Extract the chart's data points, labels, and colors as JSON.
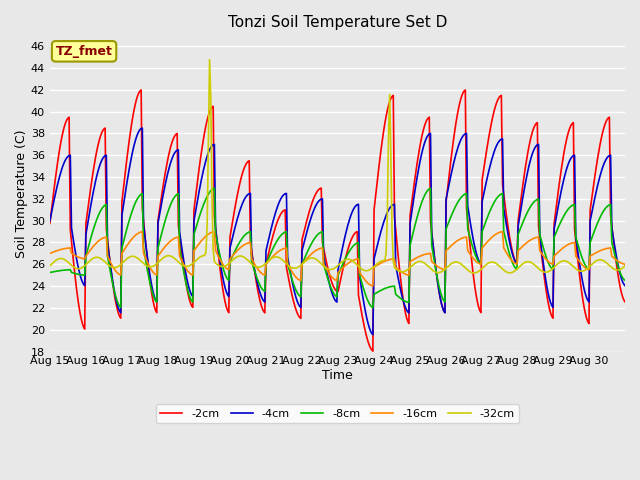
{
  "title": "Tonzi Soil Temperature Set D",
  "xlabel": "Time",
  "ylabel": "Soil Temperature (C)",
  "ylim": [
    18,
    47
  ],
  "yticks": [
    18,
    20,
    22,
    24,
    26,
    28,
    30,
    32,
    34,
    36,
    38,
    40,
    42,
    44,
    46
  ],
  "xtick_labels": [
    "Aug 15",
    "Aug 16",
    "Aug 17",
    "Aug 18",
    "Aug 19",
    "Aug 20",
    "Aug 21",
    "Aug 22",
    "Aug 23",
    "Aug 24",
    "Aug 25",
    "Aug 26",
    "Aug 27",
    "Aug 28",
    "Aug 29",
    "Aug 30"
  ],
  "legend_label": "TZ_fmet",
  "legend_box_color": "#ffff99",
  "legend_text_color": "#880000",
  "legend_edge_color": "#999900",
  "series_colors": [
    "#ff0000",
    "#0000cc",
    "#00bb00",
    "#ff8800",
    "#cccc00"
  ],
  "series_labels": [
    "-2cm",
    "-4cm",
    "-8cm",
    "-16cm",
    "-32cm"
  ],
  "fig_bg_color": "#e8e8e8",
  "plot_bg_color": "#e8e8e8",
  "grid_color": "#ffffff",
  "figsize": [
    6.4,
    4.8
  ],
  "dpi": 100
}
